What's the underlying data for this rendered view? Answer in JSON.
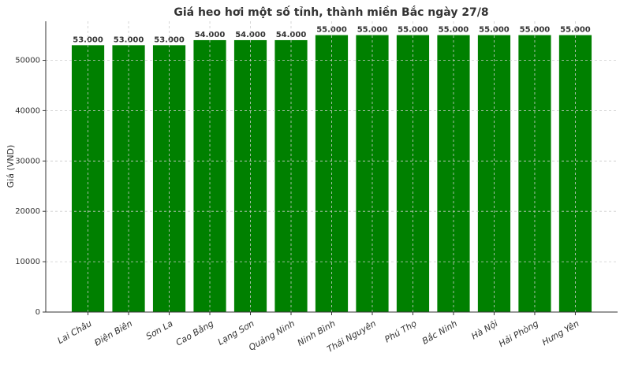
{
  "chart_data": {
    "type": "bar",
    "title": "Giá heo hơi một số tỉnh, thành miền Bắc ngày 27/8",
    "y_label": "Giá (VND)",
    "categories": [
      "Lai Châu",
      "Điện Biên",
      "Sơn La",
      "Cao Bằng",
      "Lạng Sơn",
      "Quảng Ninh",
      "Ninh Bình",
      "Thái Nguyên",
      "Phú Thọ",
      "Bắc Ninh",
      "Hà Nội",
      "Hải Phòng",
      "Hưng Yên"
    ],
    "values": [
      53000,
      53000,
      53000,
      54000,
      54000,
      54000,
      55000,
      55000,
      55000,
      55000,
      55000,
      55000,
      55000
    ],
    "value_labels": [
      "53.000",
      "53.000",
      "53.000",
      "54.000",
      "54.000",
      "54.000",
      "55.000",
      "55.000",
      "55.000",
      "55.000",
      "55.000",
      "55.000",
      "55.000"
    ],
    "color": "#008000",
    "ylim": [
      0,
      57750
    ],
    "yticks": [
      0,
      10000,
      20000,
      30000,
      40000,
      50000
    ],
    "grid": true
  }
}
